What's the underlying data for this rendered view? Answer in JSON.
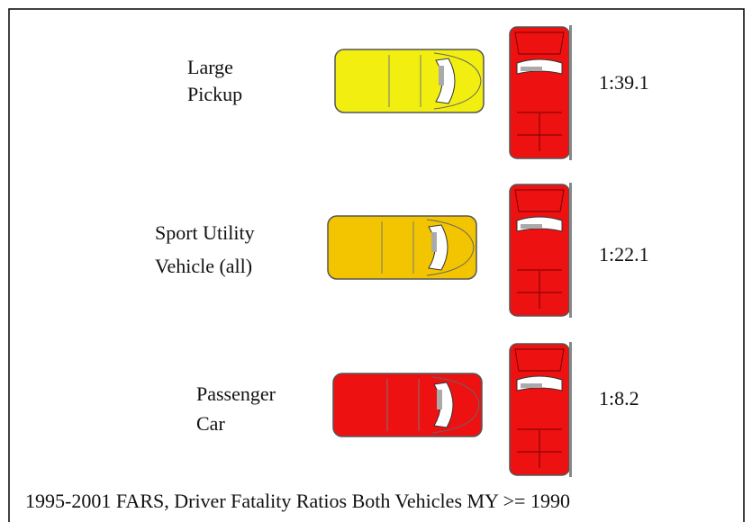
{
  "rows": [
    {
      "label": [
        "Large",
        "Pickup"
      ],
      "ratio": "1:39.1"
    },
    {
      "label": [
        "Sport Utility",
        "Vehicle (all)"
      ],
      "ratio": "1:22.1"
    },
    {
      "label": [
        "Passenger",
        "Car"
      ],
      "ratio": "1:8.2"
    }
  ],
  "caption": "1995-2001 FARS, Driver Fatality Ratios Both Vehicles MY >= 1990"
}
